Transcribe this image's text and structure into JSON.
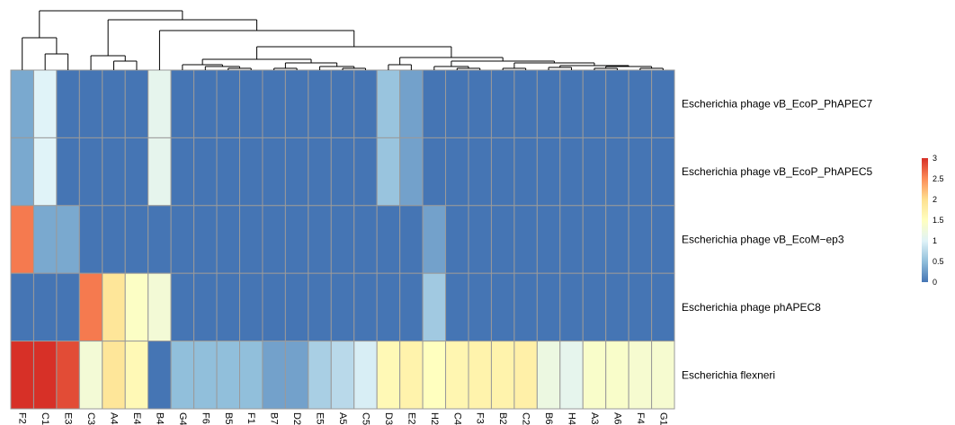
{
  "chart_data": {
    "type": "heatmap",
    "columns": [
      "F2",
      "C1",
      "E3",
      "C3",
      "A4",
      "E4",
      "B4",
      "G4",
      "F6",
      "B5",
      "F1",
      "B7",
      "D2",
      "E5",
      "A5",
      "C5",
      "D3",
      "E2",
      "H2",
      "C4",
      "F3",
      "B2",
      "C2",
      "B6",
      "H4",
      "A3",
      "A6",
      "F4",
      "G1"
    ],
    "rows": [
      "Escherichia phage vB_EcoP_PhAPEC7",
      "Escherichia phage vB_EcoP_PhAPEC5",
      "Escherichia phage vB_EcoM−ep3",
      "Escherichia phage phAPEC8",
      "Escherichia flexneri"
    ],
    "values": [
      [
        0.35,
        1.0,
        0,
        0,
        0,
        0,
        1.1,
        0,
        0,
        0,
        0,
        0,
        0,
        0,
        0,
        0,
        0.55,
        0.3,
        0,
        0,
        0,
        0,
        0,
        0,
        0,
        0,
        0,
        0,
        0
      ],
      [
        0.35,
        1.0,
        0,
        0,
        0,
        0,
        1.1,
        0,
        0,
        0,
        0,
        0,
        0,
        0,
        0,
        0,
        0.55,
        0.3,
        0,
        0,
        0,
        0,
        0,
        0,
        0,
        0,
        0,
        0,
        0
      ],
      [
        2.6,
        0.35,
        0.35,
        0,
        0,
        0,
        0,
        0,
        0,
        0,
        0,
        0,
        0,
        0,
        0,
        0,
        0,
        0,
        0.3,
        0,
        0,
        0,
        0,
        0,
        0,
        0,
        0,
        0,
        0
      ],
      [
        0,
        0,
        0,
        2.6,
        1.9,
        1.45,
        1.3,
        0,
        0,
        0,
        0,
        0,
        0,
        0,
        0,
        0,
        0,
        0,
        0.6,
        0,
        0,
        0,
        0,
        0,
        0,
        0,
        0,
        0,
        0
      ],
      [
        3.0,
        3.0,
        2.85,
        1.3,
        1.9,
        1.6,
        0,
        0.5,
        0.5,
        0.5,
        0.5,
        0.3,
        0.3,
        0.65,
        0.75,
        0.95,
        1.6,
        1.7,
        1.5,
        1.65,
        1.7,
        1.7,
        1.75,
        1.2,
        1.1,
        1.4,
        1.4,
        1.35,
        1.35
      ]
    ],
    "legend": {
      "ticks": [
        "3",
        "2.5",
        "2",
        "1.5",
        "1",
        "0.5",
        "0"
      ],
      "min": 0,
      "max": 3,
      "colors": [
        "#4575b4",
        "#91bfdb",
        "#e0f3f8",
        "#ffffbf",
        "#fee090",
        "#fc8d59",
        "#d73027"
      ],
      "placement": "right"
    },
    "column_dendrogram": true
  }
}
